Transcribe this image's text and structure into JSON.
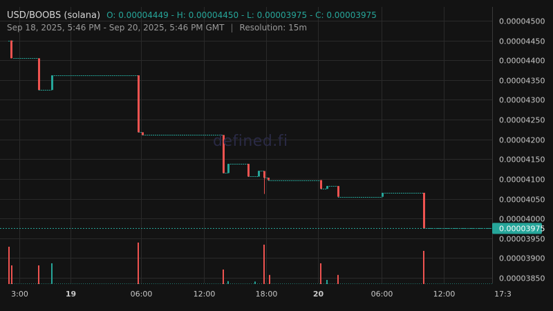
{
  "header": {
    "symbol": "USD/BOOBS (solana)",
    "ohlc": "O: 0.00004449 - H: 0.00004450 - L: 0.00003975 - C: 0.00003975",
    "range": "Sep 18, 2025, 5:46 PM - Sep 20, 2025, 5:46 PM GMT",
    "separator": "|",
    "resolution": "Resolution: 15m"
  },
  "watermark": "defined.fi",
  "colors": {
    "background": "#131313",
    "grid": "#2a2a2a",
    "up": "#26a69a",
    "down": "#ef5350",
    "axis_text": "#c8c8c8",
    "last_price_badge": "#26a69a"
  },
  "chart_data": {
    "type": "candlestick",
    "x_tick_labels": [
      "3:00",
      "19",
      "06:00",
      "12:00",
      "18:00",
      "20",
      "06:00",
      "12:00",
      "17:3"
    ],
    "y_tick_labels": [
      "0.00004500",
      "0.00004450",
      "0.00004400",
      "0.00004350",
      "0.00004300",
      "0.00004250",
      "0.00004200",
      "0.00004150",
      "0.00004100",
      "0.00004050",
      "0.00004000",
      "0.00003950",
      "0.00003900",
      "0.00003850"
    ],
    "last_price_label": "0.00003975",
    "last_price": 3.975e-05,
    "ylim": [
      3.82e-05,
      4.53e-05
    ],
    "x_range_hours": [
      0,
      48
    ],
    "grid": true,
    "price_steps": [
      {
        "t": 0.0,
        "v": 4.45e-05
      },
      {
        "t": 0.5,
        "v": 4.405e-05
      },
      {
        "t": 3.0,
        "v": 4.325e-05
      },
      {
        "t": 4.3,
        "v": 4.362e-05
      },
      {
        "t": 12.9,
        "v": 4.218e-05
      },
      {
        "t": 13.3,
        "v": 4.211e-05
      },
      {
        "t": 21.3,
        "v": 4.115e-05
      },
      {
        "t": 21.8,
        "v": 4.138e-05
      },
      {
        "t": 23.8,
        "v": 4.106e-05
      },
      {
        "t": 24.8,
        "v": 4.12e-05
      },
      {
        "t": 25.4,
        "v": 4.103e-05
      },
      {
        "t": 25.8,
        "v": 4.097e-05
      },
      {
        "t": 31.0,
        "v": 4.075e-05
      },
      {
        "t": 31.6,
        "v": 4.082e-05
      },
      {
        "t": 32.7,
        "v": 4.055e-05
      },
      {
        "t": 37.1,
        "v": 4.065e-05
      },
      {
        "t": 41.2,
        "v": 3.975e-05
      },
      {
        "t": 48.0,
        "v": 3.975e-05
      }
    ],
    "candles": [
      {
        "t": 0.25,
        "o": 4.45e-05,
        "h": 4.45e-05,
        "l": 4.405e-05,
        "c": 4.405e-05
      },
      {
        "t": 3.0,
        "o": 4.405e-05,
        "h": 4.405e-05,
        "l": 4.325e-05,
        "c": 4.325e-05
      },
      {
        "t": 4.3,
        "o": 4.325e-05,
        "h": 4.362e-05,
        "l": 4.325e-05,
        "c": 4.362e-05
      },
      {
        "t": 12.9,
        "o": 4.362e-05,
        "h": 4.362e-05,
        "l": 4.218e-05,
        "c": 4.218e-05
      },
      {
        "t": 13.3,
        "o": 4.218e-05,
        "h": 4.218e-05,
        "l": 4.211e-05,
        "c": 4.211e-05
      },
      {
        "t": 21.3,
        "o": 4.211e-05,
        "h": 4.211e-05,
        "l": 4.115e-05,
        "c": 4.115e-05
      },
      {
        "t": 21.8,
        "o": 4.115e-05,
        "h": 4.138e-05,
        "l": 4.115e-05,
        "c": 4.138e-05
      },
      {
        "t": 23.8,
        "o": 4.138e-05,
        "h": 4.138e-05,
        "l": 4.106e-05,
        "c": 4.106e-05
      },
      {
        "t": 24.8,
        "o": 4.106e-05,
        "h": 4.12e-05,
        "l": 4.106e-05,
        "c": 4.12e-05
      },
      {
        "t": 25.4,
        "o": 4.12e-05,
        "h": 4.12e-05,
        "l": 4.062e-05,
        "c": 4.103e-05
      },
      {
        "t": 25.8,
        "o": 4.103e-05,
        "h": 4.103e-05,
        "l": 4.097e-05,
        "c": 4.097e-05
      },
      {
        "t": 31.0,
        "o": 4.097e-05,
        "h": 4.097e-05,
        "l": 4.075e-05,
        "c": 4.075e-05
      },
      {
        "t": 31.6,
        "o": 4.075e-05,
        "h": 4.082e-05,
        "l": 4.075e-05,
        "c": 4.082e-05
      },
      {
        "t": 32.7,
        "o": 4.082e-05,
        "h": 4.082e-05,
        "l": 4.055e-05,
        "c": 4.055e-05
      },
      {
        "t": 37.1,
        "o": 4.055e-05,
        "h": 4.065e-05,
        "l": 4.055e-05,
        "c": 4.065e-05
      },
      {
        "t": 41.2,
        "o": 4.065e-05,
        "h": 4.065e-05,
        "l": 3.975e-05,
        "c": 3.975e-05
      }
    ],
    "volume": [
      {
        "t": 0.1,
        "v": 0.9,
        "dir": "down"
      },
      {
        "t": 0.35,
        "v": 0.45,
        "dir": "down"
      },
      {
        "t": 3.0,
        "v": 0.45,
        "dir": "down"
      },
      {
        "t": 4.3,
        "v": 0.5,
        "dir": "up"
      },
      {
        "t": 12.9,
        "v": 1.0,
        "dir": "down"
      },
      {
        "t": 21.3,
        "v": 0.35,
        "dir": "down"
      },
      {
        "t": 21.8,
        "v": 0.07,
        "dir": "up"
      },
      {
        "t": 24.5,
        "v": 0.06,
        "dir": "up"
      },
      {
        "t": 25.4,
        "v": 0.95,
        "dir": "down"
      },
      {
        "t": 25.9,
        "v": 0.22,
        "dir": "down"
      },
      {
        "t": 31.0,
        "v": 0.5,
        "dir": "down"
      },
      {
        "t": 31.6,
        "v": 0.1,
        "dir": "up"
      },
      {
        "t": 32.7,
        "v": 0.22,
        "dir": "down"
      },
      {
        "t": 41.2,
        "v": 0.8,
        "dir": "down"
      }
    ]
  }
}
